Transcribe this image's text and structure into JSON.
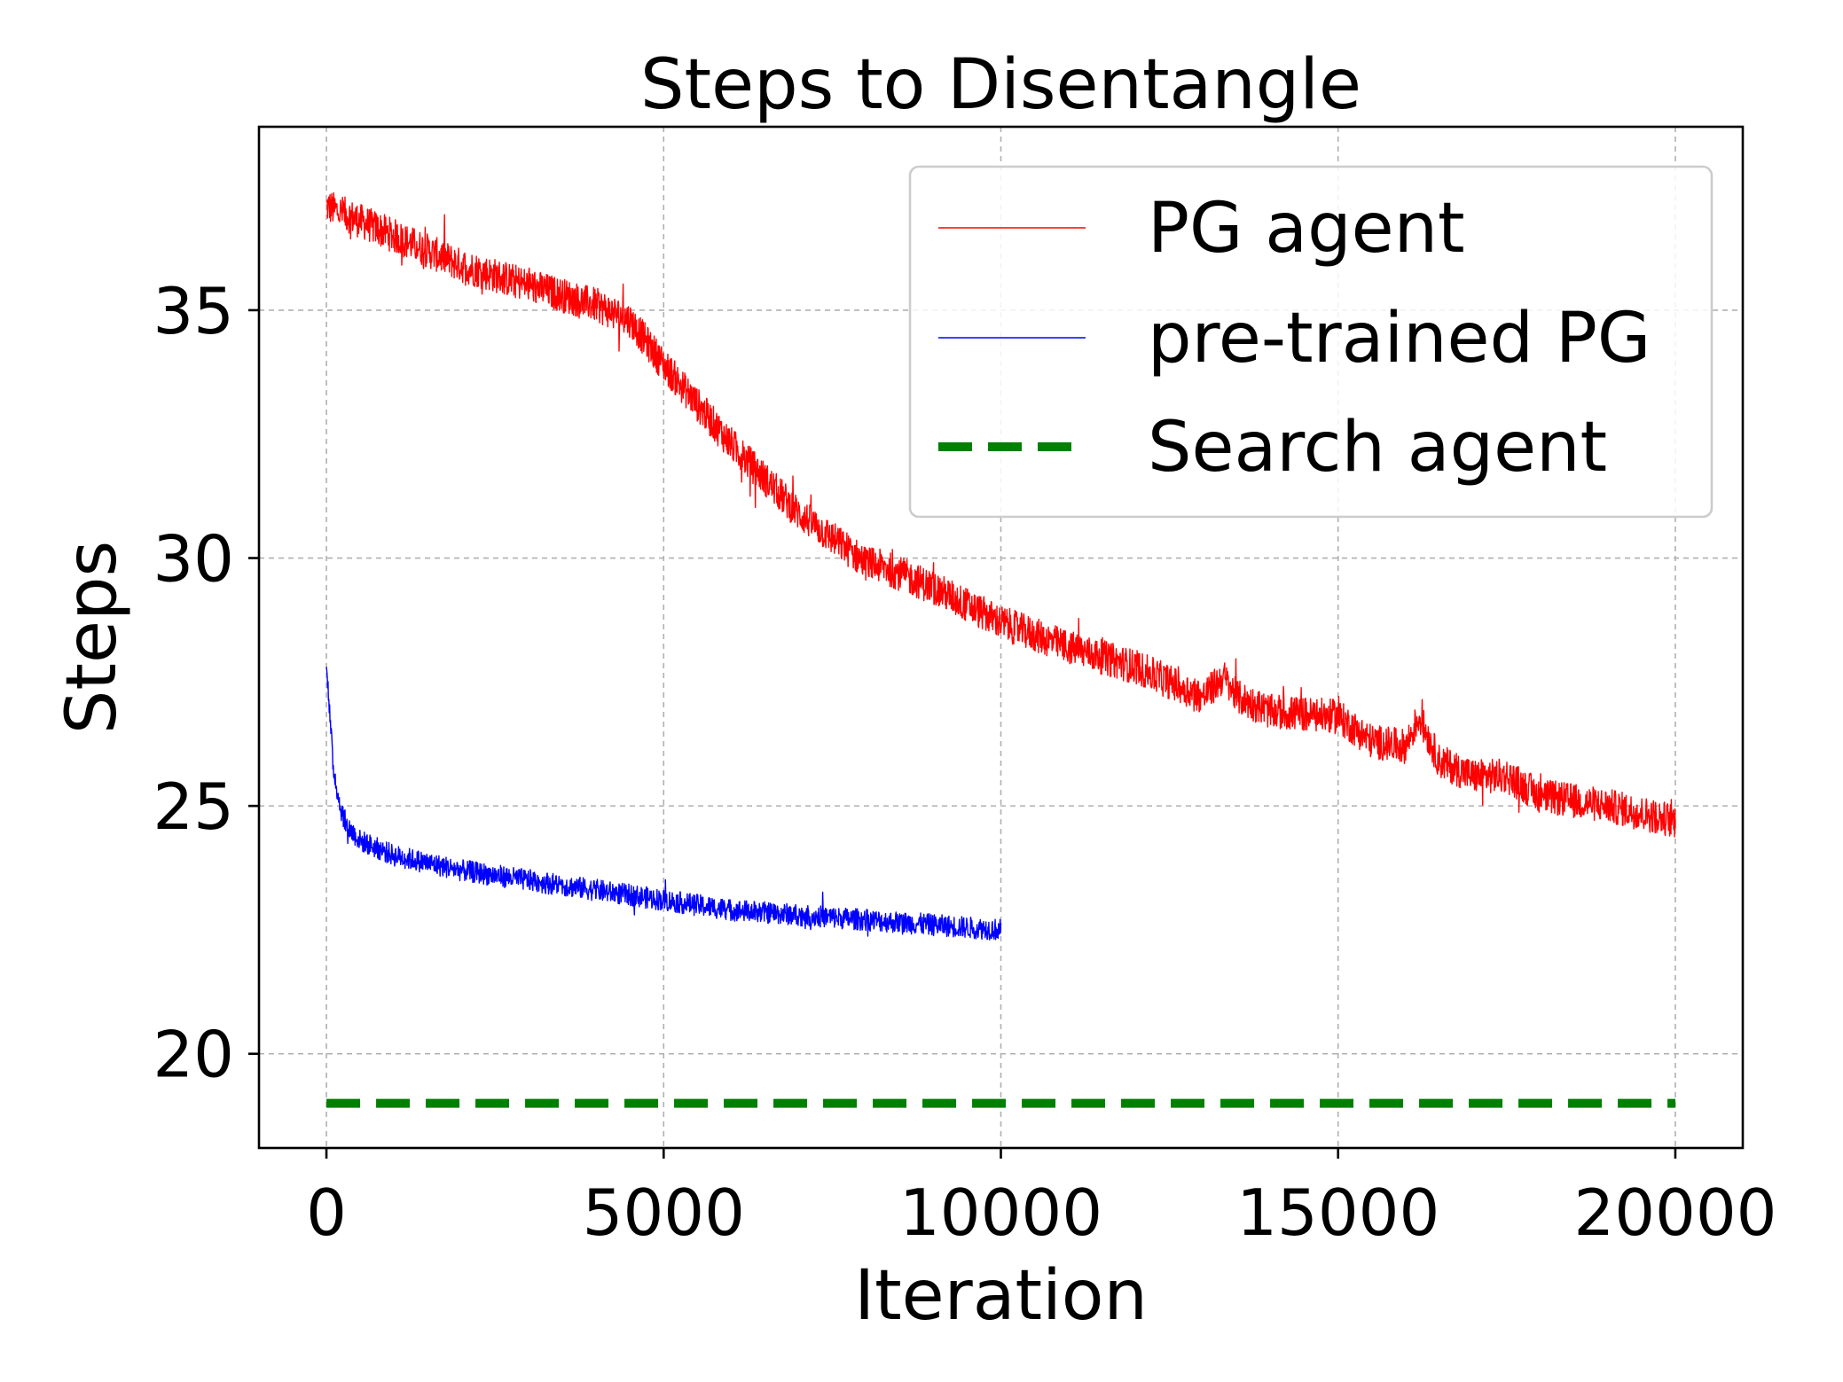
{
  "chart_data": {
    "type": "line",
    "title": "Steps to Disentangle",
    "xlabel": "Iteration",
    "ylabel": "Steps",
    "xlim": [
      -1000,
      21000
    ],
    "ylim": [
      18.1,
      38.7
    ],
    "xticks": [
      0,
      5000,
      10000,
      15000,
      20000
    ],
    "yticks": [
      20,
      25,
      30,
      35
    ],
    "grid": true,
    "legend_position": "top-right",
    "series": [
      {
        "name": "PG agent",
        "color": "#ff0000",
        "style": "solid-thin",
        "noise_amplitude": 0.35,
        "x": [
          0,
          500,
          1000,
          2000,
          3000,
          4000,
          4500,
          5000,
          6000,
          7000,
          8000,
          8300,
          9000,
          10000,
          11000,
          12000,
          13000,
          13300,
          13500,
          14000,
          15000,
          15500,
          16000,
          16200,
          16500,
          17000,
          17500,
          18000,
          19000,
          20000
        ],
        "y": [
          37.1,
          36.8,
          36.5,
          35.9,
          35.5,
          35.1,
          34.8,
          33.9,
          32.3,
          30.9,
          29.9,
          29.8,
          29.4,
          28.7,
          28.2,
          27.8,
          27.2,
          27.6,
          27.2,
          26.9,
          26.8,
          26.3,
          26.2,
          26.8,
          25.9,
          25.6,
          25.6,
          25.2,
          25.0,
          24.7
        ]
      },
      {
        "name": "pre-trained PG",
        "color": "#0000ff",
        "style": "solid-thin",
        "noise_amplitude": 0.22,
        "x": [
          0,
          50,
          100,
          200,
          300,
          500,
          1000,
          2000,
          3000,
          4000,
          5000,
          6000,
          7000,
          8000,
          9000,
          10000
        ],
        "y": [
          28.0,
          26.8,
          25.8,
          25.0,
          24.6,
          24.3,
          24.0,
          23.7,
          23.5,
          23.3,
          23.1,
          22.9,
          22.8,
          22.7,
          22.6,
          22.5
        ]
      },
      {
        "name": "Search agent",
        "color": "#008000",
        "style": "dashed-thick",
        "x": [
          0,
          20000
        ],
        "y": [
          19.0,
          19.0
        ]
      }
    ]
  }
}
